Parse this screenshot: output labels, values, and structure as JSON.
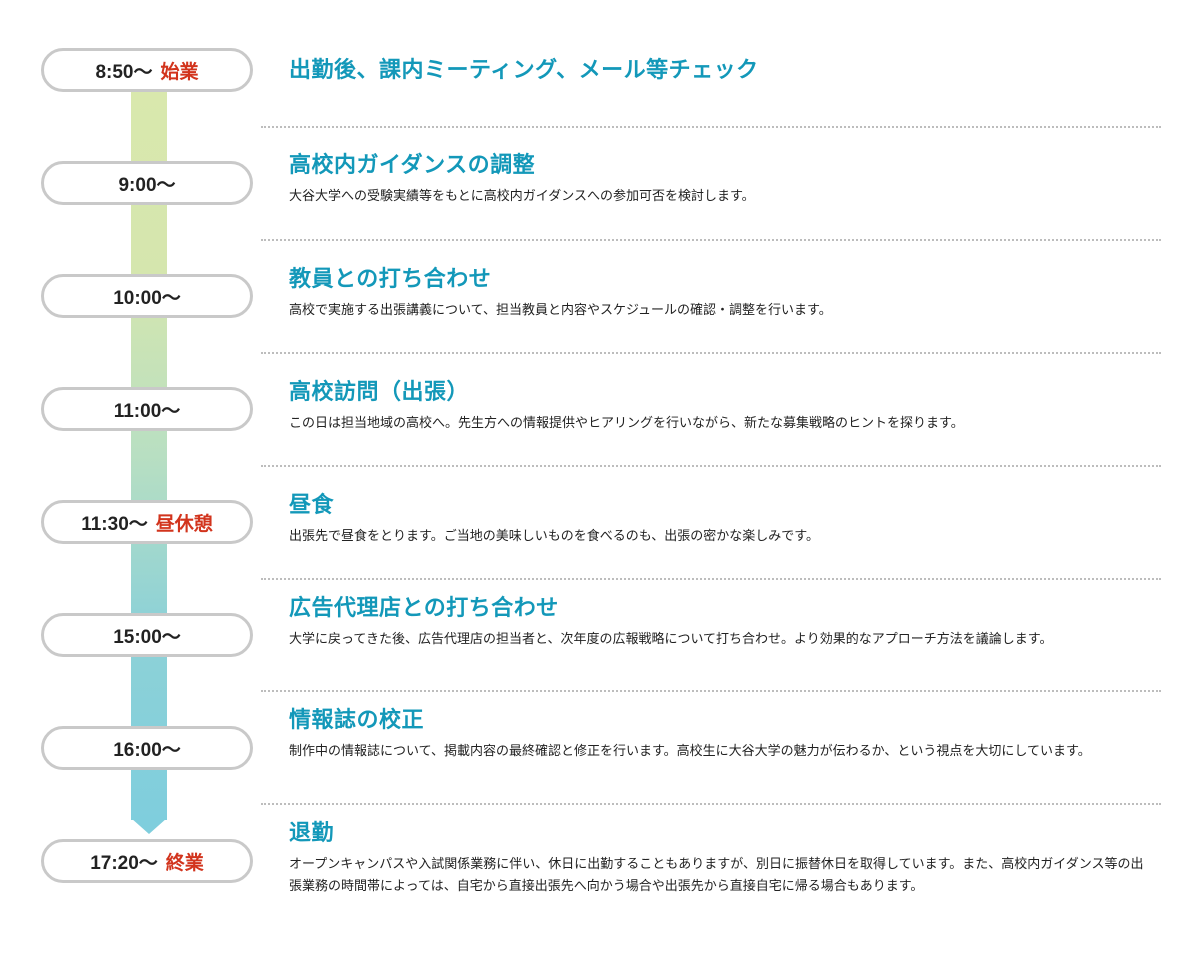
{
  "schedule": [
    {
      "time": "8:50〜",
      "marker": "始業",
      "title": "出勤後、課内ミーティング、メール等チェック",
      "desc": ""
    },
    {
      "time": "9:00〜",
      "marker": "",
      "title": "高校内ガイダンスの調整",
      "desc": "大谷大学への受験実績等をもとに高校内ガイダンスへの参加可否を検討します。"
    },
    {
      "time": "10:00〜",
      "marker": "",
      "title": "教員との打ち合わせ",
      "desc": "高校で実施する出張講義について、担当教員と内容やスケジュールの確認・調整を行います。"
    },
    {
      "time": "11:00〜",
      "marker": "",
      "title": "高校訪問（出張）",
      "desc": "この日は担当地域の高校へ。先生方への情報提供やヒアリングを行いながら、新たな募集戦略のヒントを探ります。"
    },
    {
      "time": "11:30〜",
      "marker": "昼休憩",
      "title": "昼食",
      "desc": "出張先で昼食をとります。ご当地の美味しいものを食べるのも、出張の密かな楽しみです。"
    },
    {
      "time": "15:00〜",
      "marker": "",
      "title": "広告代理店との打ち合わせ",
      "desc": "大学に戻ってきた後、広告代理店の担当者と、次年度の広報戦略について打ち合わせ。より効果的なアプローチ方法を議論します。"
    },
    {
      "time": "16:00〜",
      "marker": "",
      "title": "情報誌の校正",
      "desc": "制作中の情報誌について、掲載内容の最終確認と修正を行います。高校生に大谷大学の魅力が伝わるか、という視点を大切にしています。"
    },
    {
      "time": "17:20〜",
      "marker": "終業",
      "title": "退勤",
      "desc": "オープンキャンパスや入試関係業務に伴い、休日に出勤することもありますが、別日に振替休日を取得しています。また、高校内ガイダンス等の出張業務の時間帯によっては、自宅から直接出張先へ向かう場合や出張先から直接自宅に帰る場合もあります。"
    }
  ],
  "colors": {
    "title": "#1398b9",
    "marker": "#d2341d",
    "pill_border": "#c9c9c9",
    "timeline_top": "#d9e8ad",
    "timeline_bottom": "#7fcedd",
    "divider": "#bdbdbd"
  }
}
